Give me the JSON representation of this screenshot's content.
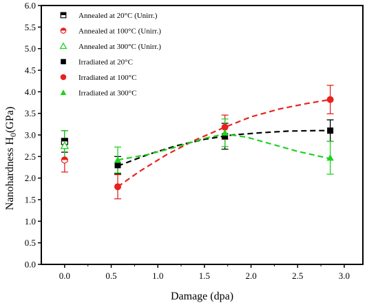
{
  "chart_data": {
    "type": "scatter",
    "xlabel": "Damage (dpa)",
    "ylabel_main": "Nanohardness H",
    "ylabel_sub": "0",
    "ylabel_unit": "(GPa)",
    "xlim": [
      -0.25,
      3.2
    ],
    "ylim": [
      0.0,
      6.0
    ],
    "xticks": [
      "0.0",
      "0.5",
      "1.0",
      "1.5",
      "2.0",
      "2.5",
      "3.0"
    ],
    "xtick_values": [
      0.0,
      0.5,
      1.0,
      1.5,
      2.0,
      2.5,
      3.0
    ],
    "yticks": [
      "0.0",
      "0.5",
      "1.0",
      "1.5",
      "2.0",
      "2.5",
      "3.0",
      "3.5",
      "4.0",
      "4.5",
      "5.0",
      "5.5",
      "6.0"
    ],
    "ytick_values": [
      0.0,
      0.5,
      1.0,
      1.5,
      2.0,
      2.5,
      3.0,
      3.5,
      4.0,
      4.5,
      5.0,
      5.5,
      6.0
    ],
    "grid": false,
    "legend_position": "top-left",
    "series": [
      {
        "name": "Annealed at 20°C (Unirr.)",
        "marker": "square-half",
        "color": "#000000",
        "points": [
          {
            "x": 0.0,
            "y": 2.85,
            "err": 0.25
          }
        ]
      },
      {
        "name": "Annealed at 100°C (Unirr.)",
        "marker": "circle-half",
        "color": "#e8211f",
        "points": [
          {
            "x": 0.0,
            "y": 2.42,
            "err": 0.28
          }
        ]
      },
      {
        "name": "Annealed at 300°C (Unirr.)",
        "marker": "triangle-open",
        "color": "#1ed21e",
        "points": [
          {
            "x": 0.0,
            "y": 2.75,
            "err": 0.35
          }
        ]
      },
      {
        "name": "Irradiated at 20°C",
        "marker": "square",
        "color": "#000000",
        "points": [
          {
            "x": 0.57,
            "y": 2.3,
            "err": 0.2
          },
          {
            "x": 1.72,
            "y": 2.97,
            "err": 0.3
          },
          {
            "x": 2.85,
            "y": 3.1,
            "err": 0.25
          }
        ],
        "fit": [
          [
            0.57,
            2.28
          ],
          [
            0.9,
            2.55
          ],
          [
            1.2,
            2.75
          ],
          [
            1.5,
            2.9
          ],
          [
            1.8,
            3.0
          ],
          [
            2.1,
            3.05
          ],
          [
            2.4,
            3.09
          ],
          [
            2.7,
            3.1
          ],
          [
            2.85,
            3.1
          ]
        ]
      },
      {
        "name": "Irradiated at 100°C",
        "marker": "circle",
        "color": "#e8211f",
        "points": [
          {
            "x": 0.57,
            "y": 1.8,
            "err": 0.28
          },
          {
            "x": 1.72,
            "y": 3.18,
            "err": 0.28
          },
          {
            "x": 2.85,
            "y": 3.82,
            "err": 0.33
          }
        ],
        "fit": [
          [
            0.57,
            1.8
          ],
          [
            0.8,
            2.15
          ],
          [
            1.1,
            2.55
          ],
          [
            1.4,
            2.88
          ],
          [
            1.72,
            3.18
          ],
          [
            2.0,
            3.42
          ],
          [
            2.3,
            3.6
          ],
          [
            2.6,
            3.73
          ],
          [
            2.85,
            3.82
          ]
        ]
      },
      {
        "name": "Irradiated at 300°C",
        "marker": "triangle",
        "color": "#1ed21e",
        "points": [
          {
            "x": 0.57,
            "y": 2.42,
            "err": 0.3
          },
          {
            "x": 1.72,
            "y": 3.05,
            "err": 0.32
          },
          {
            "x": 2.85,
            "y": 2.47,
            "err": 0.38
          }
        ],
        "fit": [
          [
            0.57,
            2.42
          ],
          [
            0.9,
            2.55
          ],
          [
            1.2,
            2.72
          ],
          [
            1.5,
            2.92
          ],
          [
            1.72,
            3.02
          ],
          [
            1.95,
            2.95
          ],
          [
            2.2,
            2.8
          ],
          [
            2.5,
            2.62
          ],
          [
            2.85,
            2.45
          ]
        ]
      }
    ]
  }
}
